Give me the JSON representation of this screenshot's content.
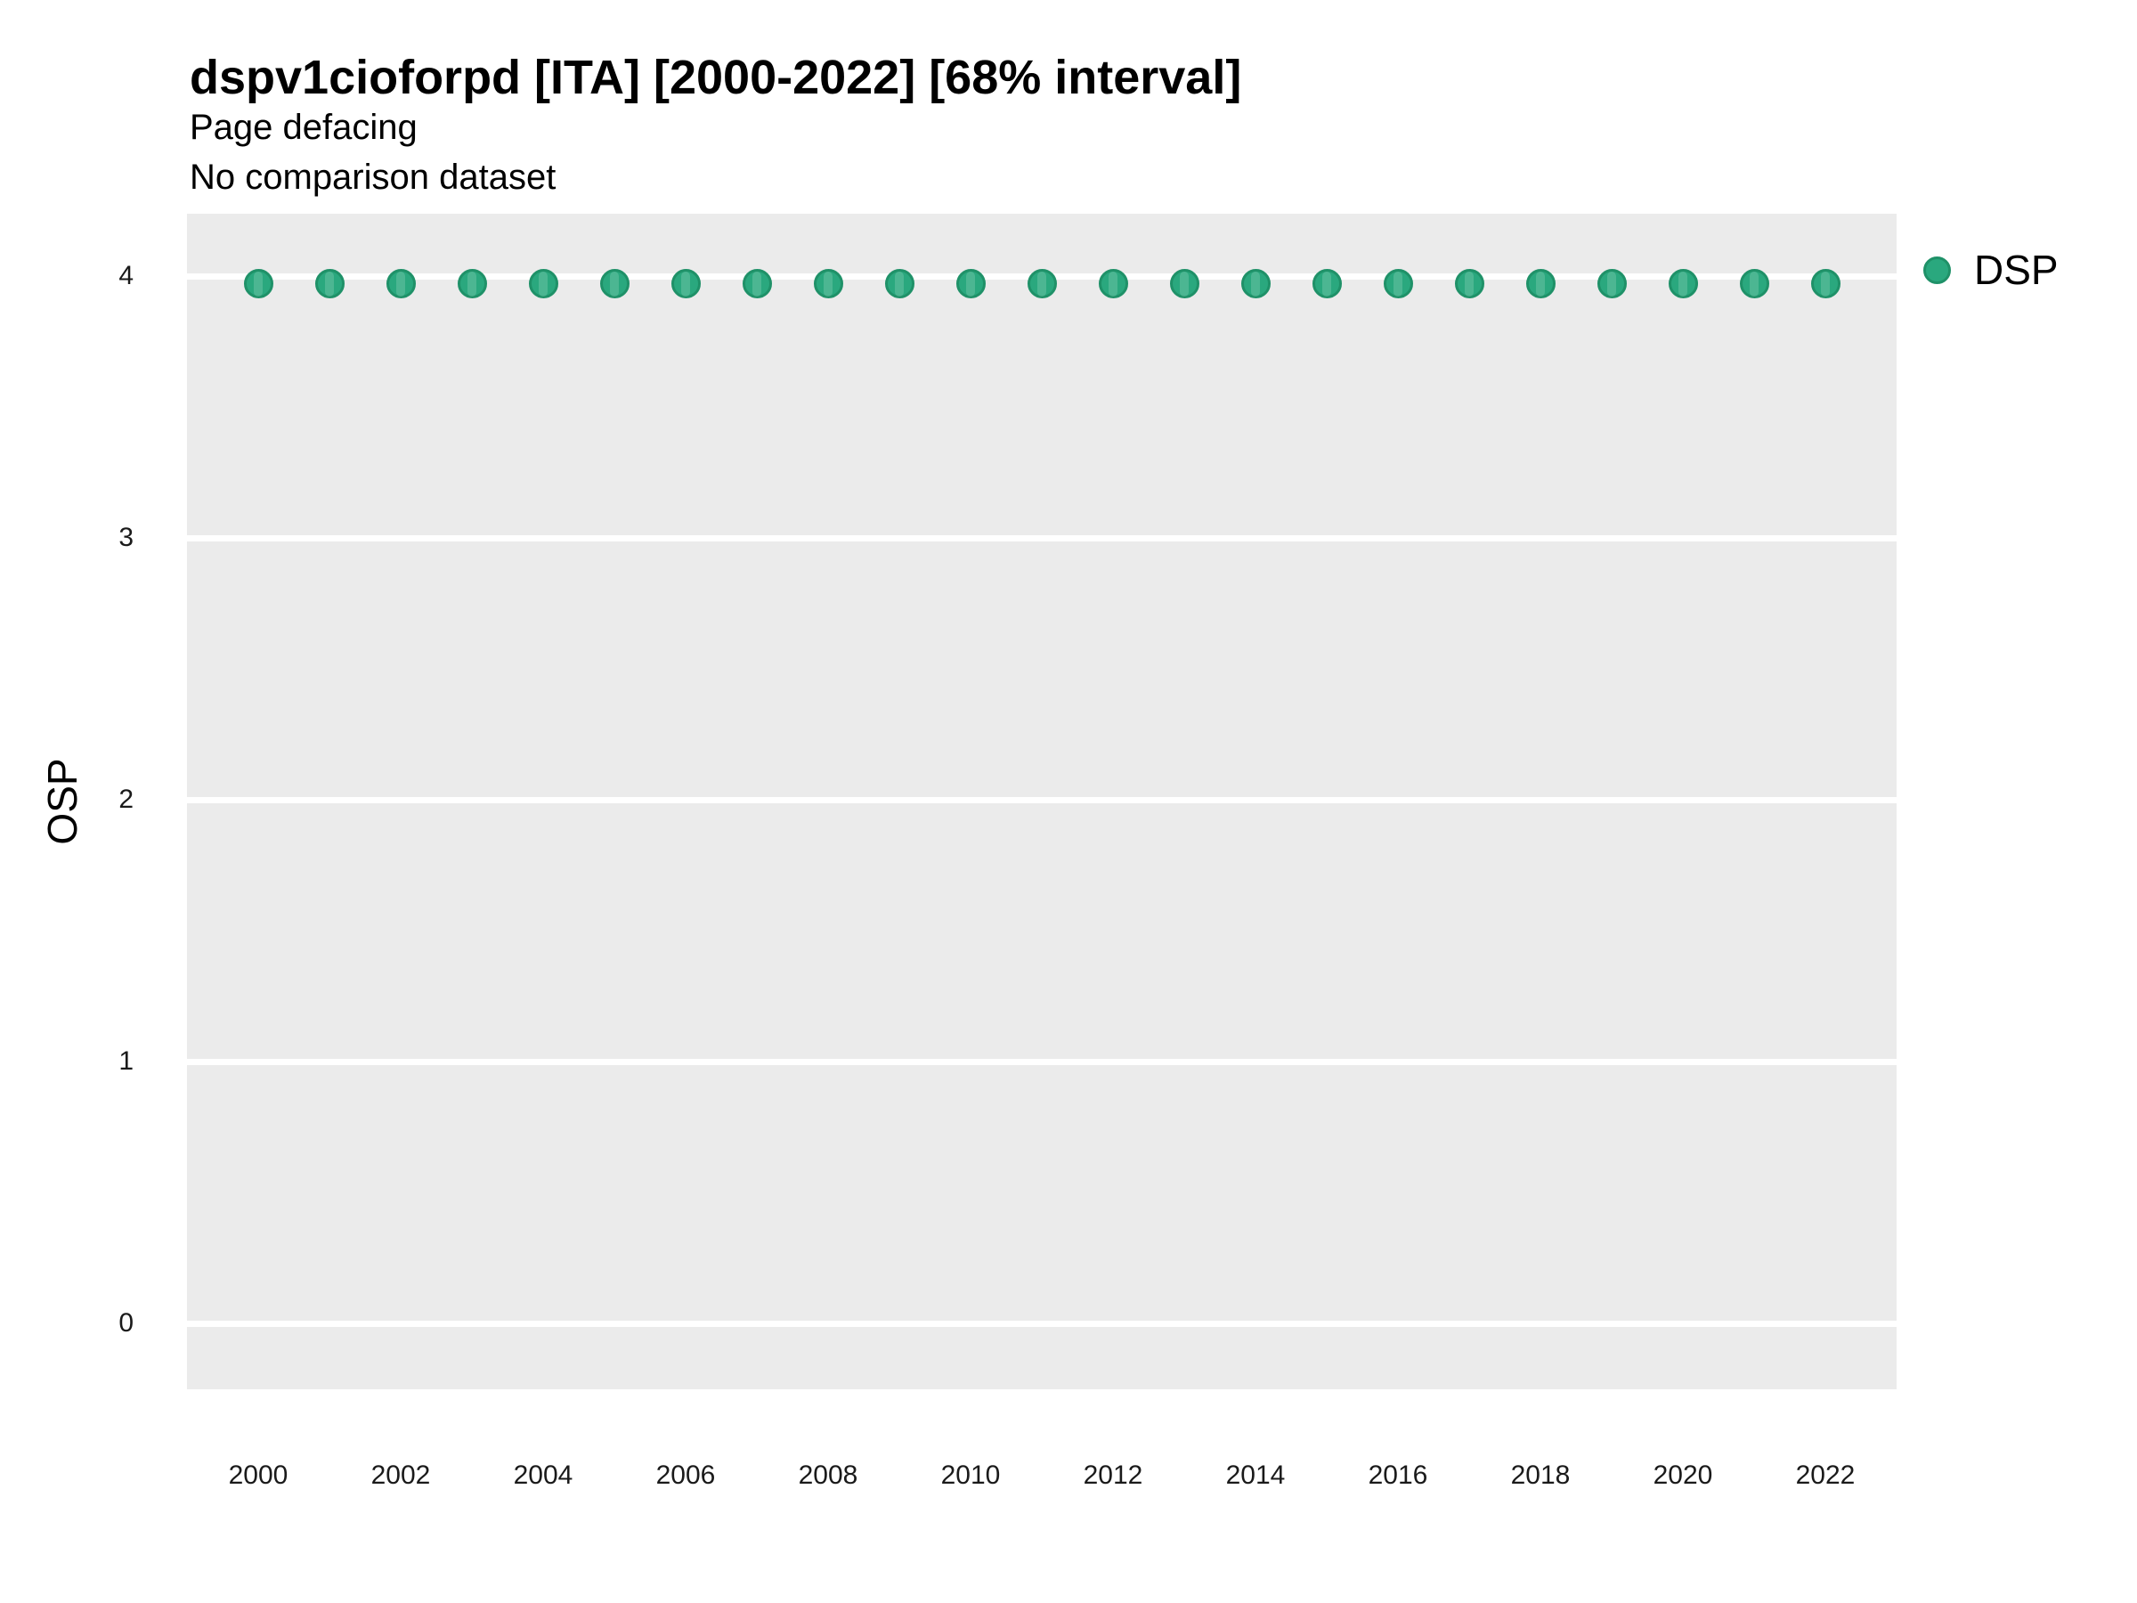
{
  "chart_data": {
    "type": "scatter",
    "title": "dspv1cioforpd [ITA] [2000-2022] [68% interval]",
    "subtitle": "Page defacing",
    "note": "No comparison dataset",
    "ylabel": "OSP",
    "xlabel": "",
    "x": [
      2000,
      2001,
      2002,
      2003,
      2004,
      2005,
      2006,
      2007,
      2008,
      2009,
      2010,
      2011,
      2012,
      2013,
      2014,
      2015,
      2016,
      2017,
      2018,
      2019,
      2020,
      2021,
      2022
    ],
    "series": [
      {
        "name": "DSP",
        "values": [
          3.97,
          3.97,
          3.97,
          3.97,
          3.97,
          3.97,
          3.97,
          3.97,
          3.97,
          3.97,
          3.97,
          3.97,
          3.97,
          3.97,
          3.97,
          3.97,
          3.97,
          3.97,
          3.97,
          3.97,
          3.97,
          3.97,
          3.97
        ],
        "interval_low": [
          3.92,
          3.92,
          3.92,
          3.92,
          3.92,
          3.92,
          3.92,
          3.92,
          3.92,
          3.92,
          3.92,
          3.92,
          3.92,
          3.92,
          3.92,
          3.92,
          3.92,
          3.92,
          3.92,
          3.92,
          3.92,
          3.92,
          3.92
        ],
        "interval_high": [
          4.02,
          4.02,
          4.02,
          4.02,
          4.02,
          4.02,
          4.02,
          4.02,
          4.02,
          4.02,
          4.02,
          4.02,
          4.02,
          4.02,
          4.02,
          4.02,
          4.02,
          4.02,
          4.02,
          4.02,
          4.02,
          4.02,
          4.02
        ]
      }
    ],
    "interval_level": "68%",
    "ylim": [
      -0.25,
      4.24
    ],
    "xlim": [
      1999,
      2023
    ],
    "yticks": [
      0,
      1,
      2,
      3,
      4
    ],
    "xticks": [
      2000,
      2002,
      2004,
      2006,
      2008,
      2010,
      2012,
      2014,
      2016,
      2018,
      2020,
      2022
    ],
    "grid": "horizontal-major-only",
    "legend": {
      "position": "right-top",
      "entries": [
        {
          "label": "DSP",
          "color": "#2aa87e"
        }
      ]
    },
    "colors": {
      "panel_bg": "#ebebeb",
      "gridline": "#ffffff",
      "point_fill": "#2aa87e",
      "point_edge": "#1f9168",
      "point_stripe": "rgba(255,255,255,0.16)",
      "text": "#000000"
    }
  }
}
